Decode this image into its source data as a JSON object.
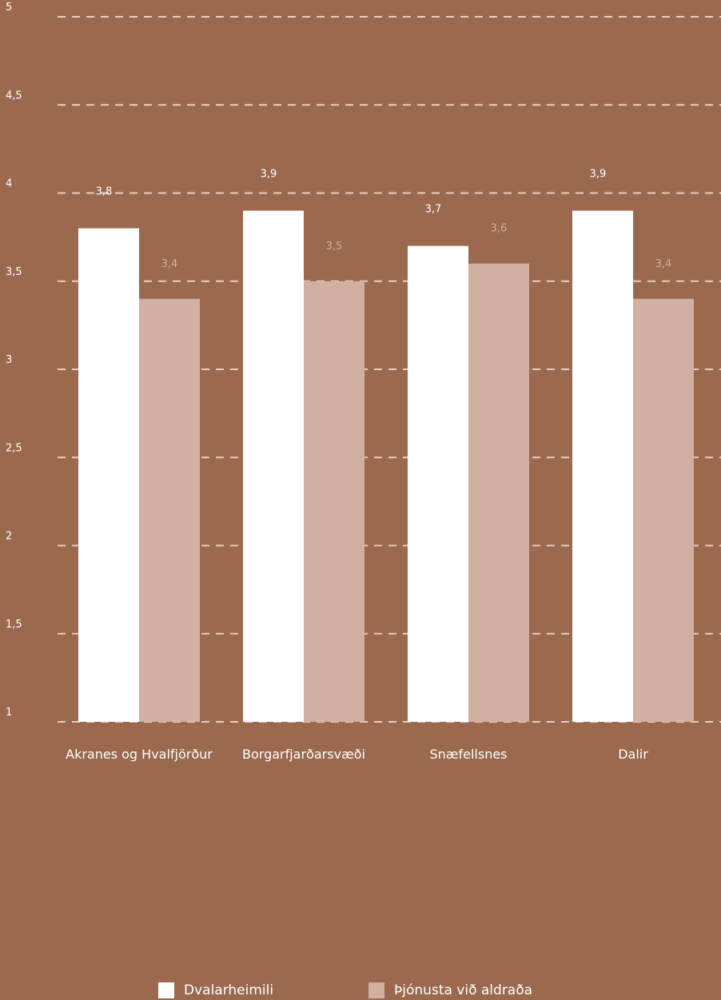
{
  "colors": {
    "background": "#9a694e",
    "grid": "#e6cfc2",
    "tick_text": "#ffffff",
    "series_1": "#ffffff",
    "series_2": "#d1b0a1",
    "series_2_label": "#d1b0a1"
  },
  "chart_data": {
    "type": "bar",
    "title": "",
    "xlabel": "",
    "ylabel": "",
    "categories": [
      "Akranes og Hvalfjörður",
      "Borgarfjarðarsvæði",
      "Snæfellsnes",
      "Dalir"
    ],
    "series": [
      {
        "name": "Dvalarheimili",
        "values": [
          3.8,
          3.9,
          3.7,
          3.9
        ],
        "labels": [
          "3,8",
          "3,9",
          "3,7",
          "3,9"
        ]
      },
      {
        "name": "Þjónusta við aldraða",
        "values": [
          3.4,
          3.5,
          3.6,
          3.4
        ],
        "labels": [
          "3,4",
          "3,5",
          "3,6",
          "3,4"
        ]
      }
    ],
    "ylim": [
      1,
      5
    ],
    "yticks": [
      1,
      1.5,
      2,
      2.5,
      3,
      3.5,
      4,
      4.5,
      5
    ],
    "ytick_labels": [
      "1",
      "1,5",
      "2",
      "2,5",
      "3",
      "3,5",
      "4",
      "4,5",
      "5"
    ],
    "grid": true,
    "grid_style": "dashed",
    "legend_position": "bottom"
  },
  "legend": [
    {
      "label": "Dvalarheimili"
    },
    {
      "label": "Þjónusta við aldraða"
    }
  ]
}
